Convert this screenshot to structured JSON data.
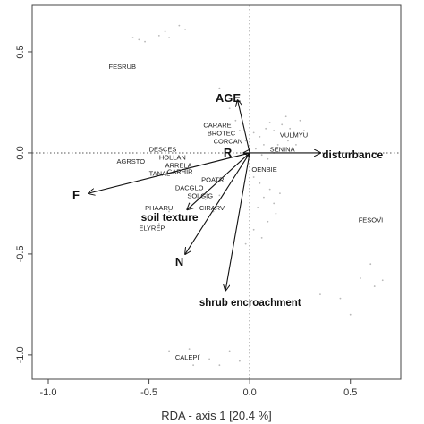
{
  "chart_data": {
    "type": "scatter",
    "subtype": "rda-biplot",
    "title": "",
    "xlabel": "RDA - axis 1 [20.4 %]",
    "ylabel": "",
    "xlim": [
      -1.08,
      0.75
    ],
    "ylim": [
      -1.12,
      0.73
    ],
    "x_ticks": [
      -1.0,
      -0.5,
      0.0,
      0.5
    ],
    "y_ticks": [
      -1.0,
      -0.5,
      0.0,
      0.5
    ],
    "x_tick_labels": [
      "-1.0",
      "-0.5",
      "0.0",
      "0.5"
    ],
    "y_tick_labels": [
      "-1.0",
      "-0.5",
      "0.0",
      "0.5"
    ],
    "grid": false,
    "zero_lines": "dotted",
    "environmental_vectors": [
      {
        "label": "AGE",
        "x": -0.06,
        "y": 0.26,
        "label_x": -0.17,
        "label_y": 0.27,
        "size": "large"
      },
      {
        "label": "R",
        "x": -0.03,
        "y": 0.0,
        "label_x": -0.13,
        "label_y": 0.0,
        "size": "large"
      },
      {
        "label": "disturbance",
        "x": 0.35,
        "y": 0.0,
        "label_x": 0.36,
        "label_y": -0.01,
        "size": "medium"
      },
      {
        "label": "F",
        "x": -0.8,
        "y": -0.2,
        "label_x": -0.88,
        "label_y": -0.21,
        "size": "large"
      },
      {
        "label": "soil texture",
        "x": -0.31,
        "y": -0.28,
        "label_x": -0.54,
        "label_y": -0.32,
        "size": "medium"
      },
      {
        "label": "N",
        "x": -0.32,
        "y": -0.5,
        "label_x": -0.37,
        "label_y": -0.54,
        "size": "large"
      },
      {
        "label": "shrub encroachment",
        "x": -0.12,
        "y": -0.68,
        "label_x": -0.25,
        "label_y": -0.74,
        "size": "small"
      }
    ],
    "species": [
      {
        "label": "FESRUB",
        "x": -0.7,
        "y": 0.43
      },
      {
        "label": "CARARE",
        "x": -0.23,
        "y": 0.14
      },
      {
        "label": "BROTEC",
        "x": -0.21,
        "y": 0.1
      },
      {
        "label": "CORCAN",
        "x": -0.18,
        "y": 0.06
      },
      {
        "label": "VULMYU",
        "x": 0.15,
        "y": 0.09
      },
      {
        "label": "SENINA",
        "x": 0.1,
        "y": 0.02
      },
      {
        "label": "DESCES",
        "x": -0.5,
        "y": 0.02
      },
      {
        "label": "HOLLAN",
        "x": -0.45,
        "y": -0.02
      },
      {
        "label": "AGRSTO",
        "x": -0.66,
        "y": -0.04
      },
      {
        "label": "ARRELA",
        "x": -0.42,
        "y": -0.06
      },
      {
        "label": "TANAL",
        "x": -0.5,
        "y": -0.1
      },
      {
        "label": "OENBIE",
        "x": 0.01,
        "y": -0.08
      },
      {
        "label": "CARHIR",
        "x": -0.41,
        "y": -0.09
      },
      {
        "label": "POATRI",
        "x": -0.24,
        "y": -0.13
      },
      {
        "label": "DACGLO",
        "x": -0.37,
        "y": -0.17
      },
      {
        "label": "SOLGIG",
        "x": -0.31,
        "y": -0.21
      },
      {
        "label": "PHAARU",
        "x": -0.52,
        "y": -0.27
      },
      {
        "label": "CIRARV",
        "x": -0.25,
        "y": -0.27
      },
      {
        "label": "ELYREP",
        "x": -0.55,
        "y": -0.37
      },
      {
        "label": "FESOVI",
        "x": 0.54,
        "y": -0.33
      },
      {
        "label": "CALEPI",
        "x": -0.37,
        "y": -1.01
      }
    ],
    "sites": [
      [
        -0.58,
        0.57
      ],
      [
        -0.55,
        0.56
      ],
      [
        -0.45,
        0.58
      ],
      [
        -0.42,
        0.6
      ],
      [
        -0.4,
        0.57
      ],
      [
        -0.35,
        0.63
      ],
      [
        -0.32,
        0.61
      ],
      [
        -0.52,
        0.55
      ],
      [
        -0.15,
        0.32
      ],
      [
        -0.12,
        0.28
      ],
      [
        -0.1,
        0.22
      ],
      [
        -0.07,
        0.16
      ],
      [
        -0.05,
        0.11
      ],
      [
        -0.02,
        0.06
      ],
      [
        0.02,
        0.1
      ],
      [
        0.05,
        0.08
      ],
      [
        0.08,
        0.12
      ],
      [
        0.1,
        0.15
      ],
      [
        0.12,
        0.11
      ],
      [
        0.16,
        0.14
      ],
      [
        0.18,
        0.18
      ],
      [
        0.2,
        0.12
      ],
      [
        0.22,
        0.1
      ],
      [
        0.25,
        0.16
      ],
      [
        0.19,
        0.06
      ],
      [
        0.14,
        0.04
      ],
      [
        0.23,
        0.04
      ],
      [
        0.27,
        0.11
      ],
      [
        0.03,
        0.02
      ],
      [
        0.06,
        -0.01
      ],
      [
        0.09,
        -0.03
      ],
      [
        0.12,
        0.0
      ],
      [
        0.07,
        0.04
      ],
      [
        0.02,
        -0.12
      ],
      [
        0.05,
        -0.15
      ],
      [
        0.1,
        -0.18
      ],
      [
        0.07,
        -0.22
      ],
      [
        0.12,
        -0.25
      ],
      [
        0.04,
        -0.27
      ],
      [
        0.15,
        -0.2
      ],
      [
        0.0,
        -0.3
      ],
      [
        0.09,
        -0.34
      ],
      [
        0.02,
        -0.38
      ],
      [
        0.06,
        -0.42
      ],
      [
        -0.02,
        -0.45
      ],
      [
        0.13,
        -0.3
      ],
      [
        -0.25,
        -0.18
      ],
      [
        -0.22,
        -0.23
      ],
      [
        -0.3,
        -0.25
      ],
      [
        -0.18,
        -0.29
      ],
      [
        -0.28,
        -0.31
      ],
      [
        -0.15,
        -0.21
      ],
      [
        -0.4,
        -0.29
      ],
      [
        -0.35,
        -0.33
      ],
      [
        -0.45,
        -0.35
      ],
      [
        0.35,
        -0.7
      ],
      [
        0.45,
        -0.72
      ],
      [
        0.55,
        -0.62
      ],
      [
        0.6,
        -0.55
      ],
      [
        0.62,
        -0.66
      ],
      [
        0.66,
        -0.63
      ],
      [
        0.5,
        -0.8
      ],
      [
        0.65,
        -0.32
      ],
      [
        -0.3,
        -0.97
      ],
      [
        -0.25,
        -1.0
      ],
      [
        -0.2,
        -1.02
      ],
      [
        -0.15,
        -1.05
      ],
      [
        -0.1,
        -0.98
      ],
      [
        -0.28,
        -1.05
      ],
      [
        -0.05,
        -1.03
      ],
      [
        -0.4,
        -0.98
      ]
    ]
  }
}
